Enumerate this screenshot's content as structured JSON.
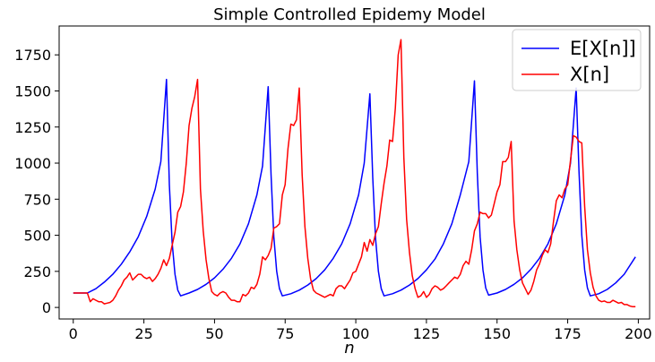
{
  "chart_data": {
    "type": "line",
    "title": "Simple Controlled Epidemy Model",
    "xlabel": "n",
    "ylabel": "",
    "xlim": [
      -5,
      204
    ],
    "ylim": [
      -80,
      1950
    ],
    "xticks": [
      0,
      25,
      50,
      75,
      100,
      125,
      150,
      175,
      200
    ],
    "xtick_labels": [
      "0",
      "25",
      "50",
      "75",
      "100",
      "125",
      "150",
      "175",
      "200"
    ],
    "yticks": [
      0,
      250,
      500,
      750,
      1000,
      1250,
      1500,
      1750
    ],
    "ytick_labels": [
      "0",
      "250",
      "500",
      "750",
      "1000",
      "1250",
      "1500",
      "1750"
    ],
    "grid": false,
    "legend_placement": "top-right",
    "series": [
      {
        "name": "E[X[n]]",
        "color": "#0000ff",
        "points": [
          [
            0,
            100
          ],
          [
            5,
            100
          ],
          [
            8,
            130
          ],
          [
            11,
            175
          ],
          [
            14,
            230
          ],
          [
            17,
            300
          ],
          [
            20,
            385
          ],
          [
            23,
            490
          ],
          [
            26,
            630
          ],
          [
            29,
            820
          ],
          [
            31,
            1010
          ],
          [
            33,
            1580
          ],
          [
            34,
            850
          ],
          [
            35,
            450
          ],
          [
            36,
            230
          ],
          [
            37,
            120
          ],
          [
            38,
            80
          ],
          [
            41,
            100
          ],
          [
            44,
            125
          ],
          [
            47,
            160
          ],
          [
            50,
            205
          ],
          [
            53,
            265
          ],
          [
            56,
            340
          ],
          [
            59,
            440
          ],
          [
            62,
            580
          ],
          [
            65,
            780
          ],
          [
            67,
            980
          ],
          [
            69,
            1530
          ],
          [
            70,
            920
          ],
          [
            71,
            490
          ],
          [
            72,
            250
          ],
          [
            73,
            130
          ],
          [
            74,
            80
          ],
          [
            77,
            95
          ],
          [
            80,
            120
          ],
          [
            83,
            155
          ],
          [
            86,
            200
          ],
          [
            89,
            260
          ],
          [
            92,
            340
          ],
          [
            95,
            440
          ],
          [
            98,
            580
          ],
          [
            101,
            780
          ],
          [
            103,
            1000
          ],
          [
            105,
            1480
          ],
          [
            106,
            900
          ],
          [
            107,
            480
          ],
          [
            108,
            250
          ],
          [
            109,
            130
          ],
          [
            110,
            80
          ],
          [
            113,
            95
          ],
          [
            116,
            120
          ],
          [
            119,
            155
          ],
          [
            122,
            200
          ],
          [
            125,
            260
          ],
          [
            128,
            335
          ],
          [
            131,
            440
          ],
          [
            134,
            580
          ],
          [
            137,
            780
          ],
          [
            140,
            1010
          ],
          [
            142,
            1570
          ],
          [
            143,
            930
          ],
          [
            144,
            490
          ],
          [
            145,
            260
          ],
          [
            146,
            135
          ],
          [
            147,
            85
          ],
          [
            150,
            100
          ],
          [
            153,
            125
          ],
          [
            156,
            160
          ],
          [
            159,
            205
          ],
          [
            162,
            265
          ],
          [
            165,
            340
          ],
          [
            168,
            440
          ],
          [
            171,
            580
          ],
          [
            174,
            780
          ],
          [
            176,
            1000
          ],
          [
            178,
            1520
          ],
          [
            179,
            940
          ],
          [
            180,
            500
          ],
          [
            181,
            260
          ],
          [
            182,
            135
          ],
          [
            183,
            80
          ],
          [
            186,
            95
          ],
          [
            189,
            125
          ],
          [
            192,
            170
          ],
          [
            195,
            230
          ],
          [
            199,
            350
          ]
        ]
      },
      {
        "name": "X[n]",
        "color": "#ff0000",
        "points": [
          [
            0,
            100
          ],
          [
            3,
            100
          ],
          [
            5,
            100
          ],
          [
            6,
            40
          ],
          [
            7,
            60
          ],
          [
            8,
            50
          ],
          [
            9,
            40
          ],
          [
            10,
            40
          ],
          [
            11,
            25
          ],
          [
            12,
            30
          ],
          [
            13,
            35
          ],
          [
            14,
            50
          ],
          [
            15,
            80
          ],
          [
            16,
            120
          ],
          [
            17,
            150
          ],
          [
            18,
            190
          ],
          [
            19,
            210
          ],
          [
            20,
            240
          ],
          [
            21,
            190
          ],
          [
            22,
            210
          ],
          [
            23,
            230
          ],
          [
            24,
            230
          ],
          [
            25,
            210
          ],
          [
            26,
            200
          ],
          [
            27,
            210
          ],
          [
            28,
            180
          ],
          [
            29,
            200
          ],
          [
            30,
            230
          ],
          [
            31,
            270
          ],
          [
            32,
            330
          ],
          [
            33,
            290
          ],
          [
            34,
            340
          ],
          [
            35,
            430
          ],
          [
            36,
            520
          ],
          [
            37,
            660
          ],
          [
            38,
            700
          ],
          [
            39,
            800
          ],
          [
            40,
            1000
          ],
          [
            41,
            1260
          ],
          [
            42,
            1380
          ],
          [
            43,
            1460
          ],
          [
            44,
            1580
          ],
          [
            45,
            820
          ],
          [
            46,
            530
          ],
          [
            47,
            330
          ],
          [
            48,
            200
          ],
          [
            49,
            110
          ],
          [
            50,
            90
          ],
          [
            51,
            80
          ],
          [
            52,
            100
          ],
          [
            53,
            110
          ],
          [
            54,
            100
          ],
          [
            55,
            70
          ],
          [
            56,
            50
          ],
          [
            57,
            50
          ],
          [
            58,
            40
          ],
          [
            59,
            40
          ],
          [
            60,
            90
          ],
          [
            61,
            80
          ],
          [
            62,
            100
          ],
          [
            63,
            140
          ],
          [
            64,
            130
          ],
          [
            65,
            160
          ],
          [
            66,
            230
          ],
          [
            67,
            350
          ],
          [
            68,
            330
          ],
          [
            69,
            360
          ],
          [
            70,
            410
          ],
          [
            71,
            550
          ],
          [
            72,
            560
          ],
          [
            73,
            580
          ],
          [
            74,
            780
          ],
          [
            75,
            850
          ],
          [
            76,
            1100
          ],
          [
            77,
            1270
          ],
          [
            78,
            1260
          ],
          [
            79,
            1300
          ],
          [
            80,
            1520
          ],
          [
            81,
            920
          ],
          [
            82,
            560
          ],
          [
            83,
            340
          ],
          [
            84,
            200
          ],
          [
            85,
            120
          ],
          [
            86,
            100
          ],
          [
            87,
            90
          ],
          [
            88,
            80
          ],
          [
            89,
            70
          ],
          [
            90,
            80
          ],
          [
            91,
            90
          ],
          [
            92,
            80
          ],
          [
            93,
            130
          ],
          [
            94,
            150
          ],
          [
            95,
            150
          ],
          [
            96,
            130
          ],
          [
            97,
            160
          ],
          [
            98,
            190
          ],
          [
            99,
            240
          ],
          [
            100,
            250
          ],
          [
            101,
            300
          ],
          [
            102,
            350
          ],
          [
            103,
            450
          ],
          [
            104,
            390
          ],
          [
            105,
            470
          ],
          [
            106,
            430
          ],
          [
            107,
            510
          ],
          [
            108,
            560
          ],
          [
            109,
            720
          ],
          [
            110,
            860
          ],
          [
            111,
            980
          ],
          [
            112,
            1160
          ],
          [
            113,
            1150
          ],
          [
            114,
            1380
          ],
          [
            115,
            1750
          ],
          [
            116,
            1855
          ],
          [
            117,
            1040
          ],
          [
            118,
            610
          ],
          [
            119,
            380
          ],
          [
            120,
            220
          ],
          [
            121,
            130
          ],
          [
            122,
            70
          ],
          [
            123,
            80
          ],
          [
            124,
            110
          ],
          [
            125,
            70
          ],
          [
            126,
            90
          ],
          [
            127,
            130
          ],
          [
            128,
            150
          ],
          [
            129,
            140
          ],
          [
            130,
            120
          ],
          [
            131,
            130
          ],
          [
            132,
            150
          ],
          [
            133,
            170
          ],
          [
            134,
            190
          ],
          [
            135,
            210
          ],
          [
            136,
            200
          ],
          [
            137,
            230
          ],
          [
            138,
            290
          ],
          [
            139,
            320
          ],
          [
            140,
            300
          ],
          [
            141,
            400
          ],
          [
            142,
            530
          ],
          [
            143,
            580
          ],
          [
            144,
            660
          ],
          [
            145,
            650
          ],
          [
            146,
            650
          ],
          [
            147,
            620
          ],
          [
            148,
            640
          ],
          [
            149,
            720
          ],
          [
            150,
            800
          ],
          [
            151,
            850
          ],
          [
            152,
            1010
          ],
          [
            153,
            1010
          ],
          [
            154,
            1040
          ],
          [
            155,
            1150
          ],
          [
            156,
            600
          ],
          [
            157,
            400
          ],
          [
            158,
            260
          ],
          [
            159,
            170
          ],
          [
            160,
            130
          ],
          [
            161,
            90
          ],
          [
            162,
            120
          ],
          [
            163,
            180
          ],
          [
            164,
            260
          ],
          [
            165,
            300
          ],
          [
            166,
            360
          ],
          [
            167,
            400
          ],
          [
            168,
            380
          ],
          [
            169,
            440
          ],
          [
            170,
            600
          ],
          [
            171,
            740
          ],
          [
            172,
            780
          ],
          [
            173,
            760
          ],
          [
            174,
            820
          ],
          [
            175,
            850
          ],
          [
            176,
            1020
          ],
          [
            177,
            1190
          ],
          [
            178,
            1180
          ],
          [
            179,
            1150
          ],
          [
            180,
            1140
          ],
          [
            181,
            700
          ],
          [
            182,
            400
          ],
          [
            183,
            240
          ],
          [
            184,
            140
          ],
          [
            185,
            80
          ],
          [
            186,
            50
          ],
          [
            187,
            40
          ],
          [
            188,
            45
          ],
          [
            189,
            35
          ],
          [
            190,
            35
          ],
          [
            191,
            50
          ],
          [
            192,
            40
          ],
          [
            193,
            30
          ],
          [
            194,
            35
          ],
          [
            195,
            20
          ],
          [
            196,
            20
          ],
          [
            197,
            10
          ],
          [
            198,
            5
          ],
          [
            199,
            5
          ]
        ]
      }
    ]
  }
}
